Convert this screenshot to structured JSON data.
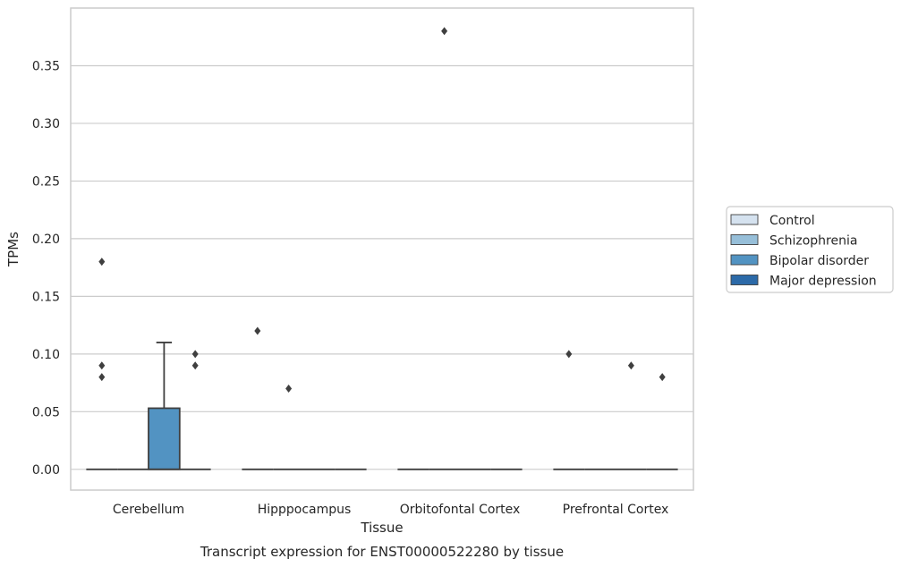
{
  "caption": "Transcript expression for ENST00000522280 by tissue",
  "colors": {
    "Control": "#d5e2ef",
    "Schizophrenia": "#97bfd9",
    "Bipolar disorder": "#5293c2",
    "Major depression": "#2c6aa8",
    "grid": "#cccccc",
    "frame": "#cccccc",
    "stroke": "#3f3f3f"
  },
  "chart_data": {
    "type": "box",
    "xlabel": "Tissue",
    "ylabel": "TPMs",
    "ylim": [
      -0.018,
      0.4
    ],
    "yticks": [
      0.0,
      0.05,
      0.1,
      0.15,
      0.2,
      0.25,
      0.3,
      0.35
    ],
    "ytick_labels": [
      "0.00",
      "0.05",
      "0.10",
      "0.15",
      "0.20",
      "0.25",
      "0.30",
      "0.35"
    ],
    "grid": true,
    "legend_position": "right",
    "categories": [
      "Cerebellum",
      "Hipppocampus",
      "Orbitofontal Cortex",
      "Prefrontal Cortex"
    ],
    "series": [
      {
        "name": "Control",
        "boxes": [
          {
            "q1": 0,
            "median": 0,
            "q3": 0,
            "whisker_low": 0,
            "whisker_high": 0,
            "outliers": [
              0.18,
              0.09,
              0.08
            ]
          },
          {
            "q1": 0,
            "median": 0,
            "q3": 0,
            "whisker_low": 0,
            "whisker_high": 0,
            "outliers": [
              0.12
            ]
          },
          {
            "q1": 0,
            "median": 0,
            "q3": 0,
            "whisker_low": 0,
            "whisker_high": 0,
            "outliers": []
          },
          {
            "q1": 0,
            "median": 0,
            "q3": 0,
            "whisker_low": 0,
            "whisker_high": 0,
            "outliers": [
              0.1
            ]
          }
        ]
      },
      {
        "name": "Schizophrenia",
        "boxes": [
          {
            "q1": 0,
            "median": 0,
            "q3": 0,
            "whisker_low": 0,
            "whisker_high": 0,
            "outliers": []
          },
          {
            "q1": 0,
            "median": 0,
            "q3": 0,
            "whisker_low": 0,
            "whisker_high": 0,
            "outliers": [
              0.07
            ]
          },
          {
            "q1": 0,
            "median": 0,
            "q3": 0,
            "whisker_low": 0,
            "whisker_high": 0,
            "outliers": [
              0.38
            ]
          },
          {
            "q1": 0,
            "median": 0,
            "q3": 0,
            "whisker_low": 0,
            "whisker_high": 0,
            "outliers": []
          }
        ]
      },
      {
        "name": "Bipolar disorder",
        "boxes": [
          {
            "q1": 0,
            "median": 0,
            "q3": 0.053,
            "whisker_low": 0,
            "whisker_high": 0.11,
            "outliers": []
          },
          {
            "q1": 0,
            "median": 0,
            "q3": 0,
            "whisker_low": 0,
            "whisker_high": 0,
            "outliers": []
          },
          {
            "q1": 0,
            "median": 0,
            "q3": 0,
            "whisker_low": 0,
            "whisker_high": 0,
            "outliers": []
          },
          {
            "q1": 0,
            "median": 0,
            "q3": 0,
            "whisker_low": 0,
            "whisker_high": 0,
            "outliers": [
              0.09
            ]
          }
        ]
      },
      {
        "name": "Major depression",
        "boxes": [
          {
            "q1": 0,
            "median": 0,
            "q3": 0,
            "whisker_low": 0,
            "whisker_high": 0,
            "outliers": [
              0.1,
              0.09
            ]
          },
          {
            "q1": 0,
            "median": 0,
            "q3": 0,
            "whisker_low": 0,
            "whisker_high": 0,
            "outliers": []
          },
          {
            "q1": 0,
            "median": 0,
            "q3": 0,
            "whisker_low": 0,
            "whisker_high": 0,
            "outliers": []
          },
          {
            "q1": 0,
            "median": 0,
            "q3": 0,
            "whisker_low": 0,
            "whisker_high": 0,
            "outliers": [
              0.08
            ]
          }
        ]
      }
    ]
  }
}
